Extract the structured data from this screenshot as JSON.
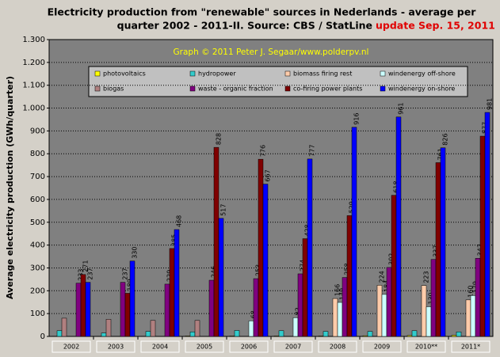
{
  "chart_data": {
    "type": "bar",
    "title_lines": [
      "Electricity production from \"renewable\" sources in Nederlands - average per",
      "quarter 2002 - 2011-II. Source: CBS / StatLine"
    ],
    "title_update": "update Sep. 15, 2011",
    "subtitle": "Graph © 2011 Peter J. Segaar/www.polderpv.nl",
    "y_label": "Average electricity production (GWh/quarter)",
    "categories": [
      "2002",
      "2003",
      "2004",
      "2005",
      "2006",
      "2007",
      "2008",
      "2009",
      "2010**",
      "2011*"
    ],
    "series": [
      {
        "name": "photovoltaics",
        "color": "#ffff00",
        "show_values": false,
        "values": [
          1,
          1,
          1,
          2,
          2,
          2,
          2,
          3,
          4,
          5
        ]
      },
      {
        "name": "hydropower",
        "color": "#33cccc",
        "show_values": false,
        "values": [
          25,
          15,
          22,
          20,
          26,
          25,
          22,
          22,
          25,
          20
        ]
      },
      {
        "name": "biogas",
        "color": "#b08080",
        "show_values": false,
        "values": [
          80,
          75,
          70,
          70,
          null,
          null,
          null,
          null,
          null,
          null
        ]
      },
      {
        "name": "biomass firing rest",
        "color": "#ffccaa",
        "show_values": true,
        "values": [
          null,
          null,
          null,
          null,
          null,
          null,
          166,
          224,
          223,
          160
        ]
      },
      {
        "name": "windenergy off-shore",
        "color": "#ccffff",
        "show_values": true,
        "values": [
          null,
          null,
          null,
          null,
          68,
          82,
          149,
          184,
          130,
          179
        ]
      },
      {
        "name": "waste - organic fraction",
        "color": "#800080",
        "show_values": true,
        "values": [
          233,
          237,
          229,
          246,
          253,
          274,
          258,
          302,
          337,
          342
        ]
      },
      {
        "name": "co-firing power plants",
        "color": "#800000",
        "show_values": true,
        "values": [
          271,
          189,
          385,
          828,
          776,
          428,
          529,
          618,
          761,
          877
        ]
      },
      {
        "name": "windenergy on-shore",
        "color": "#0000ff",
        "show_values": true,
        "values": [
          237,
          330,
          468,
          517,
          667,
          777,
          916,
          961,
          826,
          981
        ]
      }
    ],
    "legend_order": [
      0,
      1,
      3,
      4,
      2,
      5,
      6,
      7
    ],
    "ylim": [
      0,
      1300
    ],
    "yticks": [
      0,
      100,
      200,
      300,
      400,
      500,
      600,
      700,
      800,
      900,
      {
        "value": 1000,
        "label": "1.000"
      },
      {
        "value": 1100,
        "label": "1.100"
      },
      {
        "value": 1200,
        "label": "1.200"
      },
      {
        "value": 1300,
        "label": "1.300"
      }
    ],
    "grid": true
  }
}
